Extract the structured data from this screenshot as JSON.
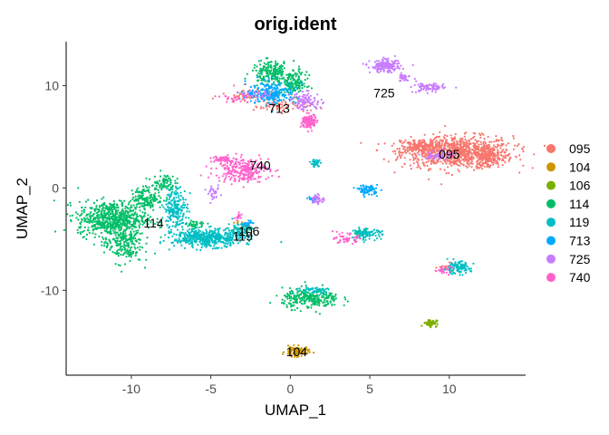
{
  "chart_data": {
    "type": "scatter",
    "title": "orig.ident",
    "xlabel": "UMAP_1",
    "ylabel": "UMAP_2",
    "xlim": [
      -14.1,
      14.8
    ],
    "ylim": [
      -18.3,
      14.3
    ],
    "x_ticks": [
      -10,
      -5,
      0,
      5,
      10
    ],
    "y_ticks": [
      -10,
      0,
      10
    ],
    "grid": false,
    "legend_position": "right",
    "series": [
      {
        "name": "095",
        "color": "#F8766D",
        "clusters": [
          {
            "cx": 10.5,
            "cy": 3.5,
            "rx": 2.9,
            "ry": 1.3,
            "n": 900
          },
          {
            "cx": 8.2,
            "cy": 4.0,
            "rx": 1.0,
            "ry": 0.5,
            "n": 150
          },
          {
            "cx": 12.5,
            "cy": 3.0,
            "rx": 0.8,
            "ry": 0.6,
            "n": 120
          },
          {
            "cx": -0.5,
            "cy": 8.0,
            "rx": 1.5,
            "ry": 0.5,
            "n": 60
          },
          {
            "cx": -2.5,
            "cy": 9.0,
            "rx": 1.5,
            "ry": 0.7,
            "n": 50
          },
          {
            "cx": 9.8,
            "cy": -7.8,
            "rx": 0.4,
            "ry": 0.3,
            "n": 15
          }
        ]
      },
      {
        "name": "104",
        "color": "#CD9600",
        "clusters": [
          {
            "cx": 0.4,
            "cy": -16.0,
            "rx": 0.6,
            "ry": 0.4,
            "n": 120
          },
          {
            "cx": -3.0,
            "cy": -3.7,
            "rx": 0.3,
            "ry": 0.4,
            "n": 20
          }
        ]
      },
      {
        "name": "106",
        "color": "#7CAE00",
        "clusters": [
          {
            "cx": 8.8,
            "cy": -13.2,
            "rx": 0.35,
            "ry": 0.3,
            "n": 60
          },
          {
            "cx": -2.7,
            "cy": -3.9,
            "rx": 0.2,
            "ry": 0.3,
            "n": 12
          }
        ]
      },
      {
        "name": "114",
        "color": "#00BE67",
        "clusters": [
          {
            "cx": -11.2,
            "cy": -3.0,
            "rx": 1.8,
            "ry": 1.4,
            "n": 650
          },
          {
            "cx": -10.5,
            "cy": -5.5,
            "rx": 1.0,
            "ry": 1.5,
            "n": 200
          },
          {
            "cx": -9.0,
            "cy": -1.0,
            "rx": 0.8,
            "ry": 0.9,
            "n": 150
          },
          {
            "cx": -8.0,
            "cy": 0.5,
            "rx": 0.6,
            "ry": 0.8,
            "n": 80
          },
          {
            "cx": 1.3,
            "cy": -10.8,
            "rx": 1.5,
            "ry": 0.8,
            "n": 280
          },
          {
            "cx": -1.2,
            "cy": 11.3,
            "rx": 1.0,
            "ry": 0.9,
            "n": 200
          },
          {
            "cx": 0.2,
            "cy": 10.2,
            "rx": 0.7,
            "ry": 1.0,
            "n": 150
          },
          {
            "cx": -6.0,
            "cy": -3.6,
            "rx": 0.6,
            "ry": 0.4,
            "n": 40
          },
          {
            "cx": 4.5,
            "cy": -4.4,
            "rx": 0.4,
            "ry": 0.2,
            "n": 30
          }
        ]
      },
      {
        "name": "119",
        "color": "#00BFC4",
        "clusters": [
          {
            "cx": -5.2,
            "cy": -4.9,
            "rx": 1.8,
            "ry": 0.7,
            "n": 480
          },
          {
            "cx": -7.2,
            "cy": -2.0,
            "rx": 0.6,
            "ry": 1.8,
            "n": 200
          },
          {
            "cx": -3.2,
            "cy": -4.1,
            "rx": 0.6,
            "ry": 0.6,
            "n": 80
          },
          {
            "cx": 10.5,
            "cy": -7.8,
            "rx": 0.7,
            "ry": 0.5,
            "n": 110
          },
          {
            "cx": 4.8,
            "cy": -4.5,
            "rx": 0.8,
            "ry": 0.4,
            "n": 100
          },
          {
            "cx": 1.6,
            "cy": 2.4,
            "rx": 0.25,
            "ry": 0.3,
            "n": 40
          },
          {
            "cx": 1.6,
            "cy": -10.0,
            "rx": 1.0,
            "ry": 0.3,
            "n": 50
          }
        ]
      },
      {
        "name": "713",
        "color": "#00A9FF",
        "clusters": [
          {
            "cx": -1.2,
            "cy": 9.3,
            "rx": 1.3,
            "ry": 0.9,
            "n": 230
          },
          {
            "cx": 4.9,
            "cy": -0.2,
            "rx": 0.5,
            "ry": 0.4,
            "n": 80
          },
          {
            "cx": -2.7,
            "cy": -3.5,
            "rx": 0.3,
            "ry": 0.3,
            "n": 20
          },
          {
            "cx": 1.4,
            "cy": -1.1,
            "rx": 0.3,
            "ry": 0.2,
            "n": 15
          }
        ]
      },
      {
        "name": "725",
        "color": "#C77CFF",
        "clusters": [
          {
            "cx": 6.0,
            "cy": 11.9,
            "rx": 0.8,
            "ry": 0.5,
            "n": 160
          },
          {
            "cx": 8.7,
            "cy": 9.8,
            "rx": 0.8,
            "ry": 0.4,
            "n": 80
          },
          {
            "cx": 7.2,
            "cy": 10.8,
            "rx": 0.5,
            "ry": 0.3,
            "n": 30
          },
          {
            "cx": 1.0,
            "cy": 8.5,
            "rx": 0.8,
            "ry": 0.7,
            "n": 90
          },
          {
            "cx": 9.4,
            "cy": 3.2,
            "rx": 0.7,
            "ry": 0.4,
            "n": 60
          },
          {
            "cx": 1.7,
            "cy": -1.1,
            "rx": 0.4,
            "ry": 0.4,
            "n": 40
          },
          {
            "cx": -4.8,
            "cy": -0.6,
            "rx": 0.3,
            "ry": 0.6,
            "n": 30
          },
          {
            "cx": -2.0,
            "cy": 9.1,
            "rx": 0.8,
            "ry": 0.3,
            "n": 30
          }
        ]
      },
      {
        "name": "740",
        "color": "#FF61CC",
        "clusters": [
          {
            "cx": -3.0,
            "cy": 1.8,
            "rx": 1.4,
            "ry": 1.0,
            "n": 260
          },
          {
            "cx": -4.3,
            "cy": 2.8,
            "rx": 0.6,
            "ry": 0.3,
            "n": 50
          },
          {
            "cx": 1.2,
            "cy": 6.5,
            "rx": 0.4,
            "ry": 0.6,
            "n": 110
          },
          {
            "cx": 3.5,
            "cy": -5.0,
            "rx": 0.6,
            "ry": 0.4,
            "n": 50
          },
          {
            "cx": 9.6,
            "cy": -8.0,
            "rx": 0.4,
            "ry": 0.3,
            "n": 25
          },
          {
            "cx": -3.2,
            "cy": -2.8,
            "rx": 0.3,
            "ry": 0.3,
            "n": 15
          },
          {
            "cx": -3.5,
            "cy": 8.8,
            "rx": 0.7,
            "ry": 0.4,
            "n": 25
          }
        ]
      }
    ],
    "cluster_labels": [
      {
        "text": "713",
        "x": -0.7,
        "y": 7.8
      },
      {
        "text": "725",
        "x": 5.9,
        "y": 9.3
      },
      {
        "text": "740",
        "x": -1.9,
        "y": 2.2
      },
      {
        "text": "095",
        "x": 10.0,
        "y": 3.3
      },
      {
        "text": "114",
        "x": -8.6,
        "y": -3.4
      },
      {
        "text": "106",
        "x": -2.6,
        "y": -4.2
      },
      {
        "text": "119",
        "x": -3.0,
        "y": -4.7
      },
      {
        "text": "104",
        "x": 0.4,
        "y": -16.0
      }
    ]
  }
}
